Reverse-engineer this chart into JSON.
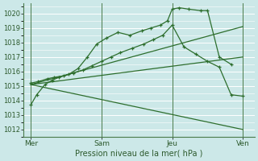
{
  "bg_color": "#cce8e8",
  "line_color": "#2d6e2d",
  "ylabel": "Pression niveau de la mer( hPa )",
  "xtick_labels": [
    "Mer",
    "Sam",
    "Jeu",
    "Ven"
  ],
  "xtick_positions": [
    0,
    3,
    6,
    9
  ],
  "ylim": [
    1011.5,
    1020.7
  ],
  "yticks": [
    1012,
    1013,
    1014,
    1015,
    1016,
    1017,
    1018,
    1019,
    1020
  ],
  "lines": [
    {
      "x": [
        0.0,
        0.25,
        0.6,
        0.9,
        1.2,
        1.6,
        2.0,
        2.4,
        2.8,
        3.2,
        3.7,
        4.2,
        4.7,
        5.1,
        5.5,
        5.8,
        6.0,
        6.3,
        6.7,
        7.2,
        7.5,
        8.0,
        8.5
      ],
      "y": [
        1013.7,
        1014.4,
        1015.1,
        1015.4,
        1015.6,
        1015.8,
        1016.2,
        1017.0,
        1017.9,
        1018.3,
        1018.7,
        1018.5,
        1018.8,
        1019.0,
        1019.2,
        1019.5,
        1020.3,
        1020.4,
        1020.3,
        1020.2,
        1020.2,
        1017.0,
        1016.5
      ],
      "has_markers": true
    },
    {
      "x": [
        0.0,
        0.3,
        0.7,
        1.0,
        1.4,
        1.8,
        2.2,
        2.6,
        3.0,
        3.4,
        3.8,
        4.3,
        4.8,
        5.2,
        5.6,
        6.0,
        6.5,
        7.0,
        7.5,
        8.0,
        8.5,
        9.0
      ],
      "y": [
        1015.2,
        1015.3,
        1015.5,
        1015.6,
        1015.7,
        1015.9,
        1016.1,
        1016.4,
        1016.7,
        1017.0,
        1017.3,
        1017.6,
        1017.9,
        1018.2,
        1018.5,
        1019.2,
        1017.7,
        1017.2,
        1016.7,
        1016.3,
        1014.4,
        1014.3
      ],
      "has_markers": true
    },
    {
      "x": [
        0.0,
        9.0
      ],
      "y": [
        1015.1,
        1019.1
      ],
      "has_markers": false
    },
    {
      "x": [
        0.0,
        9.0
      ],
      "y": [
        1015.1,
        1017.0
      ],
      "has_markers": false
    },
    {
      "x": [
        0.0,
        9.0
      ],
      "y": [
        1015.1,
        1012.0
      ],
      "has_markers": false
    }
  ],
  "vlines": [
    0,
    3.0,
    6.0,
    9.0
  ]
}
